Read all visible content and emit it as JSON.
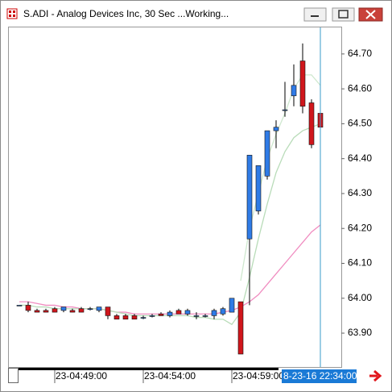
{
  "chart_data": {
    "type": "candlestick",
    "title": "S.ADI - Analog Devices Inc, 30 Sec ...Working...",
    "categories": [
      null,
      null,
      null,
      null,
      "23-04:49:00",
      null,
      null,
      null,
      null,
      null,
      null,
      null,
      null,
      null,
      "23-04:54:00",
      null,
      null,
      null,
      null,
      null,
      null,
      null,
      null,
      null,
      "23-04:59:00",
      null,
      null,
      null,
      null,
      null,
      null,
      null,
      null,
      null,
      null
    ],
    "open": [
      63.98,
      63.98,
      63.965,
      63.965,
      63.97,
      63.965,
      63.965,
      63.97,
      63.97,
      63.965,
      63.975,
      63.95,
      63.95,
      63.95,
      63.945,
      63.95,
      63.955,
      63.95,
      63.965,
      63.955,
      63.95,
      63.95,
      63.95,
      63.955,
      63.96,
      63.99,
      64.17,
      64.25,
      64.35,
      64.48,
      64.54,
      64.58,
      64.68,
      64.56,
      64.53
    ],
    "high": [
      63.98,
      63.99,
      63.97,
      63.97,
      63.975,
      63.975,
      63.97,
      63.975,
      63.975,
      63.975,
      63.975,
      63.955,
      63.955,
      63.955,
      63.95,
      63.955,
      63.96,
      63.965,
      63.97,
      63.97,
      63.96,
      63.955,
      63.97,
      63.975,
      64.0,
      63.99,
      64.41,
      64.38,
      64.48,
      64.51,
      64.62,
      64.67,
      64.73,
      64.57,
      64.54
    ],
    "low": [
      63.98,
      63.96,
      63.96,
      63.96,
      63.96,
      63.96,
      63.96,
      63.96,
      63.965,
      63.96,
      63.94,
      63.94,
      63.94,
      63.94,
      63.94,
      63.945,
      63.95,
      63.945,
      63.955,
      63.95,
      63.94,
      63.945,
      63.94,
      63.95,
      63.96,
      63.84,
      63.98,
      64.24,
      64.34,
      64.43,
      64.52,
      64.55,
      64.53,
      64.43,
      64.48
    ],
    "close": [
      63.98,
      63.965,
      63.96,
      63.96,
      63.96,
      63.975,
      63.96,
      63.96,
      63.97,
      63.975,
      63.95,
      63.94,
      63.94,
      63.94,
      63.945,
      63.95,
      63.95,
      63.96,
      63.955,
      63.965,
      63.95,
      63.95,
      63.965,
      63.97,
      64.0,
      63.84,
      64.41,
      64.38,
      64.48,
      64.49,
      64.54,
      64.61,
      64.55,
      64.44,
      64.49
    ],
    "up_color": "#2f7be6",
    "down_color": "#d0161c",
    "lines": [
      {
        "color": "#f08cc0",
        "values": [
          63.99,
          63.99,
          63.985,
          63.98,
          63.98,
          63.975,
          63.975,
          63.97,
          63.97,
          63.97,
          63.965,
          63.96,
          63.96,
          63.955,
          63.955,
          63.955,
          63.955,
          63.955,
          63.955,
          63.955,
          63.955,
          63.955,
          63.955,
          63.96,
          63.965,
          63.975,
          63.99,
          64.01,
          64.04,
          64.07,
          64.1,
          64.13,
          64.16,
          64.19,
          64.21
        ]
      },
      {
        "color": "#b9dcb9",
        "values": [
          63.98,
          63.98,
          63.975,
          63.975,
          63.97,
          63.97,
          63.97,
          63.97,
          63.97,
          63.97,
          63.965,
          63.96,
          63.955,
          63.95,
          63.95,
          63.95,
          63.95,
          63.95,
          63.95,
          63.95,
          63.945,
          63.945,
          63.94,
          63.94,
          63.925,
          63.96,
          64.06,
          64.17,
          64.27,
          64.36,
          64.42,
          64.46,
          64.48,
          64.49,
          64.5
        ]
      },
      {
        "color": "#cfe8cf",
        "values": [
          null,
          null,
          null,
          null,
          null,
          null,
          null,
          null,
          null,
          null,
          null,
          null,
          null,
          null,
          null,
          null,
          null,
          null,
          null,
          null,
          null,
          null,
          null,
          null,
          null,
          64.05,
          64.2,
          64.3,
          64.4,
          64.47,
          64.53,
          64.6,
          64.64,
          64.64,
          64.61
        ]
      }
    ],
    "ylim": [
      63.803,
      64.776
    ],
    "yticks": [
      {
        "value": 63.9,
        "label": "63.90"
      },
      {
        "value": 64.0,
        "label": "64.00"
      },
      {
        "value": 64.1,
        "label": "64.10"
      },
      {
        "value": 64.2,
        "label": "64.20"
      },
      {
        "value": 64.3,
        "label": "64.30"
      },
      {
        "value": 64.4,
        "label": "64.40"
      },
      {
        "value": 64.5,
        "label": "64.50"
      },
      {
        "value": 64.6,
        "label": "64.60"
      },
      {
        "value": 64.7,
        "label": "64.70"
      }
    ],
    "cursor_label": "8-23-16 22:34:00"
  }
}
